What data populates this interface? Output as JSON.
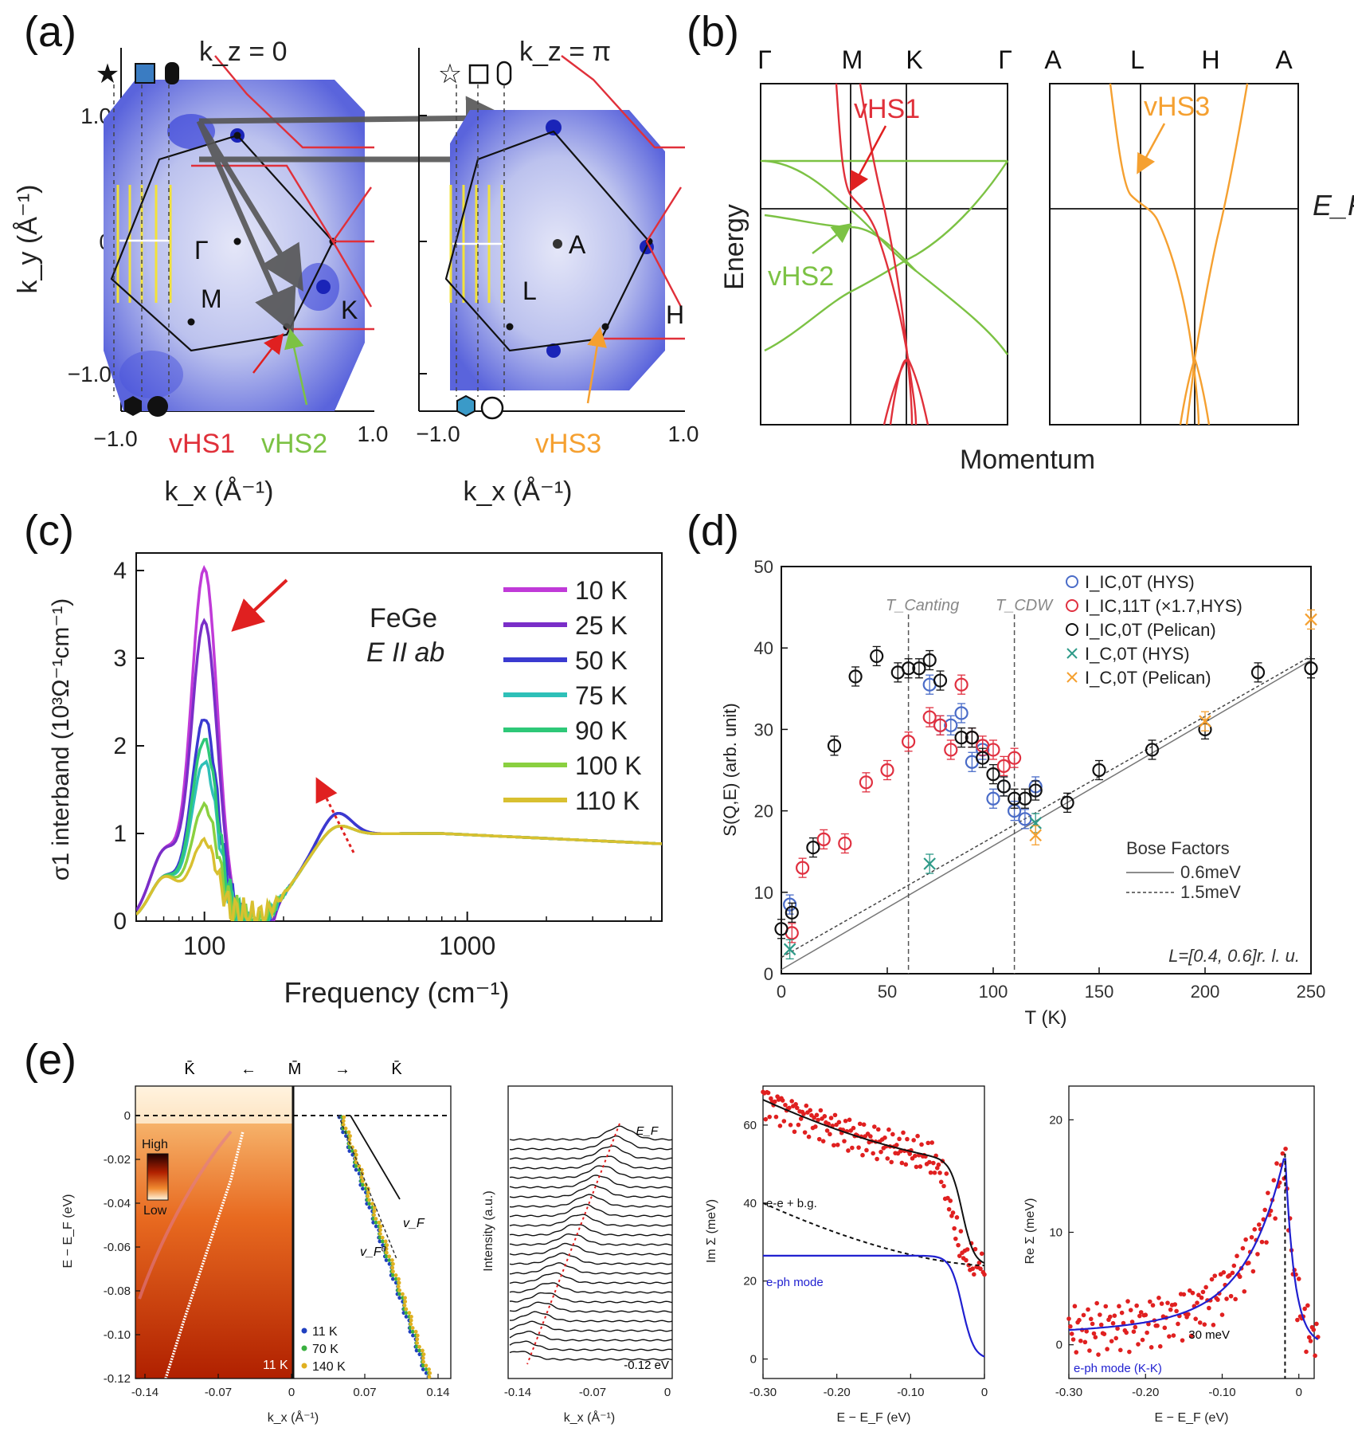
{
  "panel_a": {
    "label": "(a)",
    "left": {
      "kz_label": "k_z = 0",
      "points": {
        "gamma": "Γ",
        "m": "M",
        "k": "K"
      }
    },
    "right": {
      "kz_label": "k_z = π",
      "points": {
        "a": "A",
        "l": "L",
        "h": "H"
      }
    },
    "ylabel": "k_y (Å⁻¹)",
    "xlabel": "k_x (Å⁻¹)",
    "yticks": [
      "1.0",
      "0",
      "−1.0"
    ],
    "xticks_left": [
      "−1.0",
      "1.0"
    ],
    "xticks_right": [
      "−1.0",
      "1.0"
    ],
    "vhs_labels": {
      "vhs1": "vHS1",
      "vhs2": "vHS2",
      "vhs3": "vHS3"
    },
    "colors": {
      "map": "#3a44d8",
      "vhs1": "#e0303a",
      "vhs2": "#7cc244",
      "vhs3": "#f5a030",
      "yellow": "#f2e23a",
      "marker_blue": "#3a7cc2"
    }
  },
  "panel_b": {
    "label": "(b)",
    "left_kpath": [
      "Γ",
      "M",
      "K",
      "Γ"
    ],
    "right_kpath": [
      "A",
      "L",
      "H",
      "A"
    ],
    "ylabel": "Energy",
    "xlabel": "Momentum",
    "ef_label": "E_F",
    "vhs_labels": {
      "vhs1": "vHS1",
      "vhs2": "vHS2",
      "vhs3": "vHS3"
    }
  },
  "panel_c": {
    "label": "(c)",
    "chart_data": {
      "type": "line",
      "xscale": "log",
      "xlim": [
        55,
        5500
      ],
      "ylim": [
        0,
        4.2
      ],
      "xticks": [
        100,
        1000
      ],
      "yticks": [
        0,
        1,
        2,
        3,
        4
      ],
      "xlabel": "Frequency (cm⁻¹)",
      "ylabel": "σ1 interband (10³Ω⁻¹cm⁻¹)",
      "annotation": {
        "material": "FeGe",
        "polarization": "E II ab"
      },
      "legend": "right",
      "series": [
        {
          "name": "10 K",
          "color": "#c03ad8"
        },
        {
          "name": "25 K",
          "color": "#7a2ec8"
        },
        {
          "name": "50 K",
          "color": "#3a3ad0"
        },
        {
          "name": "75 K",
          "color": "#2ec0b8"
        },
        {
          "name": "90 K",
          "color": "#2ec878"
        },
        {
          "name": "100 K",
          "color": "#8ad040"
        },
        {
          "name": "110 K",
          "color": "#d8c030"
        }
      ]
    }
  },
  "panel_d": {
    "label": "(d)",
    "chart_data": {
      "type": "scatter",
      "xlim": [
        0,
        250
      ],
      "ylim": [
        0,
        50
      ],
      "xticks": [
        0,
        50,
        100,
        150,
        200,
        250
      ],
      "yticks": [
        0,
        10,
        20,
        30,
        40,
        50
      ],
      "xlabel": "T (K)",
      "ylabel": "S(Q,E) (arb. unit)",
      "vlines": [
        {
          "x": 60,
          "label": "T_Canting"
        },
        {
          "x": 110,
          "label": "T_CDW"
        }
      ],
      "legend": "top-right",
      "series": [
        {
          "name": "I_IC,0T (HYS)",
          "color": "#4a6cc8",
          "marker": "circle",
          "x": [
            4,
            70,
            75,
            80,
            85,
            90,
            95,
            100,
            105,
            110,
            115,
            120
          ],
          "y": [
            8.5,
            35.5,
            30.5,
            30.5,
            32,
            26,
            27.5,
            21.5,
            23,
            20,
            19,
            23
          ]
        },
        {
          "name": "I_IC,11T (×1.7,HYS)",
          "color": "#e03040",
          "marker": "circle",
          "x": [
            5,
            10,
            20,
            30,
            40,
            50,
            60,
            70,
            75,
            80,
            85,
            90,
            95,
            100,
            105,
            110
          ],
          "y": [
            5,
            13,
            16.5,
            16,
            23.5,
            25,
            28.5,
            31.5,
            30.5,
            27.5,
            35.5,
            29,
            28,
            27.5,
            25.5,
            26.5
          ]
        },
        {
          "name": "I_IC,0T (Pelican)",
          "color": "#111111",
          "marker": "circle",
          "x": [
            0,
            5,
            15,
            25,
            35,
            45,
            55,
            60,
            65,
            70,
            75,
            85,
            90,
            95,
            100,
            105,
            110,
            115,
            120,
            135,
            150,
            175,
            200,
            225,
            250
          ],
          "y": [
            5.5,
            7.5,
            15.5,
            28,
            36.5,
            39,
            37,
            37.5,
            37.5,
            38.5,
            36,
            29,
            29,
            26.5,
            24.5,
            23,
            21.5,
            21.5,
            22.5,
            21,
            25,
            27.5,
            30,
            37,
            37.5
          ]
        },
        {
          "name": "I_C,0T (HYS)",
          "color": "#2e9a88",
          "marker": "x",
          "x": [
            4,
            70,
            120
          ],
          "y": [
            3,
            13.5,
            18.5
          ]
        },
        {
          "name": "I_C,0T (Pelican)",
          "color": "#f5a030",
          "marker": "x",
          "x": [
            120,
            200,
            250
          ],
          "y": [
            17,
            31,
            43.5
          ]
        }
      ],
      "bose_factors": {
        "title": "Bose Factors",
        "lines": [
          {
            "name": "0.6meV",
            "style": "solid"
          },
          {
            "name": "1.5meV",
            "style": "dashed"
          }
        ]
      },
      "annotation": "L=[0.4, 0.6]r. l. u."
    }
  },
  "panel_e": {
    "label": "(e)",
    "top_labels": [
      "K̄",
      "←",
      "M̄",
      "→",
      "K̄"
    ],
    "arpes": {
      "ylabel": "E − E_F (eV)",
      "xlabel": "k_x (Å⁻¹)",
      "yticks": [
        "0",
        "-0.02",
        "-0.04",
        "-0.06",
        "-0.08",
        "-0.10",
        "-0.12"
      ],
      "xticks": [
        "-0.14",
        "-0.07",
        "0",
        "0.07",
        "0.14"
      ],
      "colorbar": {
        "high": "High",
        "low": "Low"
      },
      "temp_label": "11 K",
      "velocity_labels": {
        "vf": "v_F",
        "vf0": "v_F⁰"
      },
      "legend": [
        {
          "name": "11 K",
          "color": "#2040c0"
        },
        {
          "name": "70 K",
          "color": "#3ab040"
        },
        {
          "name": "140 K",
          "color": "#e0b020"
        }
      ]
    },
    "mdc": {
      "ylabel": "Intensity (a.u.)",
      "xlabel": "k_x (Å⁻¹)",
      "xticks": [
        "-0.14",
        "-0.07",
        "0"
      ],
      "top_label": "E_F",
      "bottom_label": "-0.12 eV"
    },
    "im_sigma": {
      "chart_data": {
        "type": "scatter",
        "xlim": [
          -0.3,
          0
        ],
        "ylim": [
          -5,
          70
        ],
        "xticks": [
          "-0.30",
          "-0.20",
          "-0.10",
          "0"
        ],
        "yticks": [
          "0",
          "20",
          "40",
          "60"
        ],
        "xlabel": "E − E_F (eV)",
        "ylabel": "Im Σ (meV)",
        "annotations": [
          "e-e + b.g.",
          "e-ph mode"
        ]
      }
    },
    "re_sigma": {
      "chart_data": {
        "type": "scatter",
        "xlim": [
          -0.3,
          0.02
        ],
        "ylim": [
          -3,
          23
        ],
        "xticks": [
          "-0.30",
          "-0.20",
          "-0.10",
          "0"
        ],
        "yticks": [
          "0",
          "10",
          "20"
        ],
        "xlabel": "E − E_F (eV)",
        "ylabel": "Re Σ (meV)",
        "vline_label": "30 meV",
        "annotation": "e-ph mode (K-K)"
      }
    }
  }
}
